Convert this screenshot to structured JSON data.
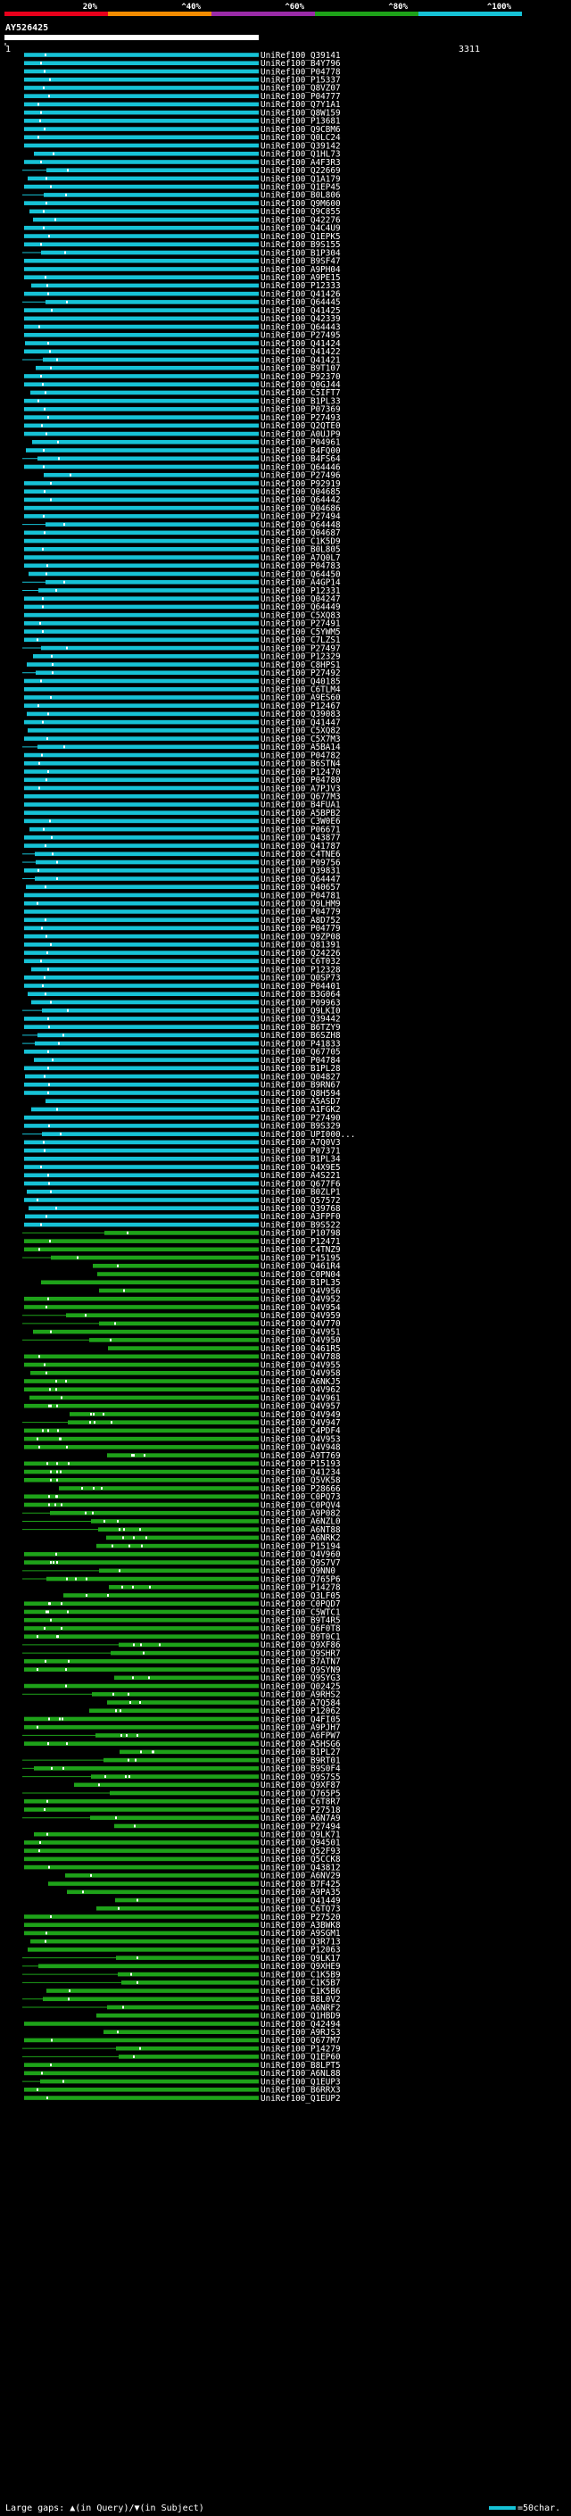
{
  "chart_data": {
    "type": "alignment-overview",
    "query_id": "AY526425",
    "axis_start": "1",
    "axis_end": "3311",
    "query_length": 3311,
    "identity_scale": [
      {
        "label": "20%",
        "color": "#e8001b"
      },
      {
        "label": "^40%",
        "color": "#f28b00"
      },
      {
        "label": "^60%",
        "color": "#9a2ba8"
      },
      {
        "label": "^80%",
        "color": "#1ea219"
      },
      {
        "label": "^100%",
        "color": "#16c2d6"
      }
    ],
    "legend_text": "Large gaps: ▲(in Query)/▼(in Subject)",
    "legend_scale": "=50char.",
    "hits": [
      "UniRef100_Q39141",
      "UniRef100_B4Y796",
      "UniRef100_P04778",
      "UniRef100_P15337",
      "UniRef100_Q8VZ07",
      "UniRef100_P04777",
      "UniRef100_Q7Y1A1",
      "UniRef100_Q8W159",
      "UniRef100_P13681",
      "UniRef100_Q9CBM6",
      "UniRef100_Q0LC24",
      "UniRef100_Q39142",
      "UniRef100_Q1HL73",
      "UniRef100_A4F3R3",
      "UniRef100_Q22669",
      "UniRef100_Q1A179",
      "UniRef100_Q1EP45",
      "UniRef100_B0L806",
      "UniRef100_Q9M600",
      "UniRef100_Q9C855",
      "UniRef100_Q42276",
      "UniRef100_Q4C4U9",
      "UniRef100_Q1EPK5",
      "UniRef100_B9S155",
      "UniRef100_B1P304",
      "UniRef100_B9SF47",
      "UniRef100_A9PH04",
      "UniRef100_A9PE15",
      "UniRef100_P12333",
      "UniRef100_Q41426",
      "UniRef100_Q64445",
      "UniRef100_Q41425",
      "UniRef100_Q42339",
      "UniRef100_Q64443",
      "UniRef100_P27495",
      "UniRef100_Q41424",
      "UniRef100_Q41422",
      "UniRef100_Q41421",
      "UniRef100_B9T107",
      "UniRef100_P92370",
      "UniRef100_Q0GJ44",
      "UniRef100_C5IFT7",
      "UniRef100_B1PL33",
      "UniRef100_P07369",
      "UniRef100_P27493",
      "UniRef100_Q2QTE0",
      "UniRef100_A0UJP9",
      "UniRef100_P04961",
      "UniRef100_B4FQ00",
      "UniRef100_B4FS64",
      "UniRef100_Q64446",
      "UniRef100_P27496",
      "UniRef100_P92919",
      "UniRef100_Q04685",
      "UniRef100_Q64442",
      "UniRef100_Q04686",
      "UniRef100_P27494",
      "UniRef100_Q64448",
      "UniRef100_Q04687",
      "UniRef100_C1K5D9",
      "UniRef100_B0L805",
      "UniRef100_A7Q0L7",
      "UniRef100_P04783",
      "UniRef100_Q64450",
      "UniRef100_A4GP14",
      "UniRef100_P12331",
      "UniRef100_Q04247",
      "UniRef100_Q64449",
      "UniRef100_C5XQ83",
      "UniRef100_P27491",
      "UniRef100_C5YWM5",
      "UniRef100_C7LZS1",
      "UniRef100_P27497",
      "UniRef100_P12329",
      "UniRef100_C8HPS1",
      "UniRef100_P27492",
      "UniRef100_Q40185",
      "UniRef100_C6TLM4",
      "UniRef100_A9ES60",
      "UniRef100_P12467",
      "UniRef100_Q39083",
      "UniRef100_Q41447",
      "UniRef100_C5XQ82",
      "UniRef100_C5X7M3",
      "UniRef100_A5BA14",
      "UniRef100_P04782",
      "UniRef100_B6STN4",
      "UniRef100_P12470",
      "UniRef100_P04780",
      "UniRef100_A7PJV3",
      "UniRef100_Q677M3",
      "UniRef100_B4FUA1",
      "UniRef100_A5BPB2",
      "UniRef100_C3W0E6",
      "UniRef100_P06671",
      "UniRef100_Q43877",
      "UniRef100_Q41787",
      "UniRef100_C4TNE6",
      "UniRef100_P09756",
      "UniRef100_Q39831",
      "UniRef100_Q64447",
      "UniRef100_Q40657",
      "UniRef100_P04781",
      "UniRef100_Q9LHM9",
      "UniRef100_P04779",
      "UniRef100_A8D752",
      "UniRef100_P04779",
      "UniRef100_Q9ZP08",
      "UniRef100_Q81391",
      "UniRef100_Q24226",
      "UniRef100_C6T032",
      "UniRef100_P12328",
      "UniRef100_Q0SP73",
      "UniRef100_P04401",
      "UniRef100_B3G064",
      "UniRef100_P09963",
      "UniRef100_Q9LKI0",
      "UniRef100_Q39442",
      "UniRef100_B6TZY9",
      "UniRef100_B6SZH8",
      "UniRef100_P41833",
      "UniRef100_Q67705",
      "UniRef100_P04784",
      "UniRef100_B1PL28",
      "UniRef100_Q04827",
      "UniRef100_B9RN67",
      "UniRef100_Q8H594",
      "UniRef100_A5ASD7",
      "UniRef100_A1FGK2",
      "UniRef100_P27490",
      "UniRef100_B9S329",
      "UniRef100_UPI000...",
      "UniRef100_A7Q0V3",
      "UniRef100_P07371",
      "UniRef100_B1PL34",
      "UniRef100_Q4X9E5",
      "UniRef100_A4S221",
      "UniRef100_Q677F6",
      "UniRef100_B0ZLP1",
      "UniRef100_Q57572",
      "UniRef100_Q39768",
      "UniRef100_A3FPF0",
      "UniRef100_B9S522",
      "UniRef100_P10798",
      "UniRef100_P12471",
      "UniRef100_C4TNZ9",
      "UniRef100_P15195",
      "UniRef100_Q461R4",
      "UniRef100_C0PN04",
      "UniRef100_B1PL35",
      "UniRef100_Q4V956",
      "UniRef100_Q4V952",
      "UniRef100_Q4V954",
      "UniRef100_Q4V959",
      "UniRef100_Q4V770",
      "UniRef100_Q4V951",
      "UniRef100_Q4V950",
      "UniRef100_Q461R5",
      "UniRef100_Q4V788",
      "UniRef100_Q4V955",
      "UniRef100_Q4V958",
      "UniRef100_A6NKJ5",
      "UniRef100_Q4V962",
      "UniRef100_Q4V961",
      "UniRef100_Q4V957",
      "UniRef100_Q4V949",
      "UniRef100_Q4V947",
      "UniRef100_C4PDF4",
      "UniRef100_Q4V953",
      "UniRef100_Q4V948",
      "UniRef100_A9T769",
      "UniRef100_P15193",
      "UniRef100_Q41234",
      "UniRef100_Q5VK58",
      "UniRef100_P28666",
      "UniRef100_C0PQ73",
      "UniRef100_C0PQV4",
      "UniRef100_A9P082",
      "UniRef100_A6NZL0",
      "UniRef100_A6NT88",
      "UniRef100_A6NRK2",
      "UniRef100_P15194",
      "UniRef100_Q4V960",
      "UniRef100_Q9S7V7",
      "UniRef100_Q9NN0",
      "UniRef100_Q765P6",
      "UniRef100_P14278",
      "UniRef100_Q3LF05",
      "UniRef100_C0PQD7",
      "UniRef100_C5WTC1",
      "UniRef100_B9T4R5",
      "UniRef100_Q6F0T8",
      "UniRef100_B9T0C1",
      "UniRef100_Q9XF86",
      "UniRef100_Q9SHR7",
      "UniRef100_B7ATN7",
      "UniRef100_Q9SYN9",
      "UniRef100_Q9SYG3",
      "UniRef100_Q02425",
      "UniRef100_A9RHS2",
      "UniRef100_A7Q584",
      "UniRef100_P12062",
      "UniRef100_Q4FI05",
      "UniRef100_A9PJH7",
      "UniRef100_A6FPW7",
      "UniRef100_A5HSG6",
      "UniRef100_B1PL27",
      "UniRef100_B9RT01",
      "UniRef100_B9S0F4",
      "UniRef100_Q9S7S5",
      "UniRef100_Q9XF87",
      "UniRef100_Q765P5",
      "UniRef100_C6T8R7",
      "UniRef100_P27518",
      "UniRef100_A6N7A9",
      "UniRef100_P27494",
      "UniRef100_Q9LK71",
      "UniRef100_Q94501",
      "UniRef100_Q52F93",
      "UniRef100_Q5CCK8",
      "UniRef100_Q43812",
      "UniRef100_A6NV29",
      "UniRef100_B7F425",
      "UniRef100_A9PA35",
      "UniRef100_Q41449",
      "UniRef100_C6TQ73",
      "UniRef100_P27520",
      "UniRef100_A3BWK8",
      "UniRef100_A9SGM1",
      "UniRef100_Q3R713",
      "UniRef100_P12063",
      "UniRef100_Q9LK17",
      "UniRef100_Q9XHE9",
      "UniRef100_C1K5B9",
      "UniRef100_C1K5B7",
      "UniRef100_C1K5B6",
      "UniRef100_B8L0V2",
      "UniRef100_A6NRF2",
      "UniRef100_Q1HBD9",
      "UniRef100_Q42494",
      "UniRef100_A9RJS3",
      "UniRef100_Q677M7",
      "UniRef100_P14279",
      "UniRef100_Q1EP60",
      "UniRef100_B8LPT5",
      "UniRef100_A6NL88",
      "UniRef100_Q1EUP3",
      "UniRef100_B6RRX3",
      "UniRef100_Q1EUP2"
    ]
  }
}
